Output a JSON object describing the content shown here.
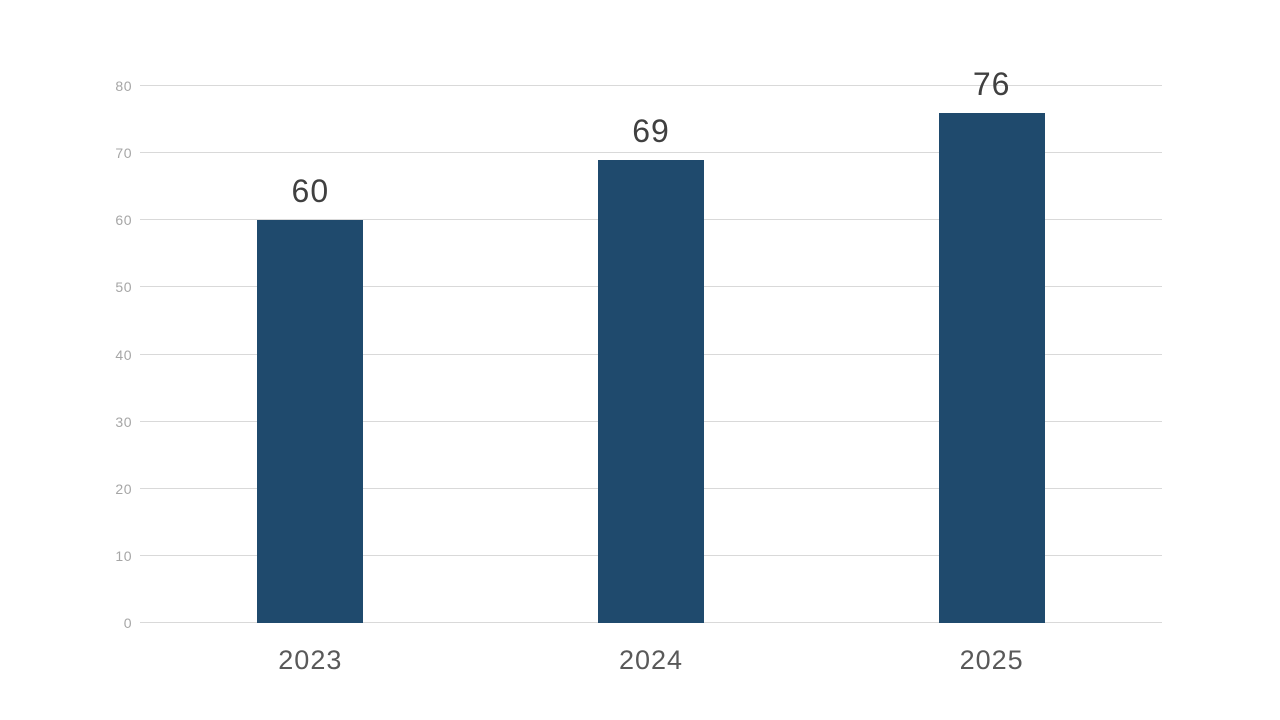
{
  "chart_data": {
    "type": "bar",
    "title": "",
    "xlabel": "",
    "ylabel": "",
    "categories": [
      "2023",
      "2024",
      "2025"
    ],
    "values": [
      60,
      69,
      76
    ],
    "data_labels": [
      "60",
      "69",
      "76"
    ],
    "ylim": [
      0,
      80
    ],
    "ytick_step": 10,
    "ytick_labels": [
      "0",
      "10",
      "20",
      "30",
      "40",
      "50",
      "60",
      "70",
      "80"
    ],
    "grid": "horizontal",
    "legend": "none",
    "colors": {
      "bar": "#1f4a6d",
      "gridline": "#d9d9d9",
      "ytick_label": "#a6a6a6",
      "data_label": "#404040",
      "x_label": "#595959",
      "background": "#ffffff"
    }
  }
}
